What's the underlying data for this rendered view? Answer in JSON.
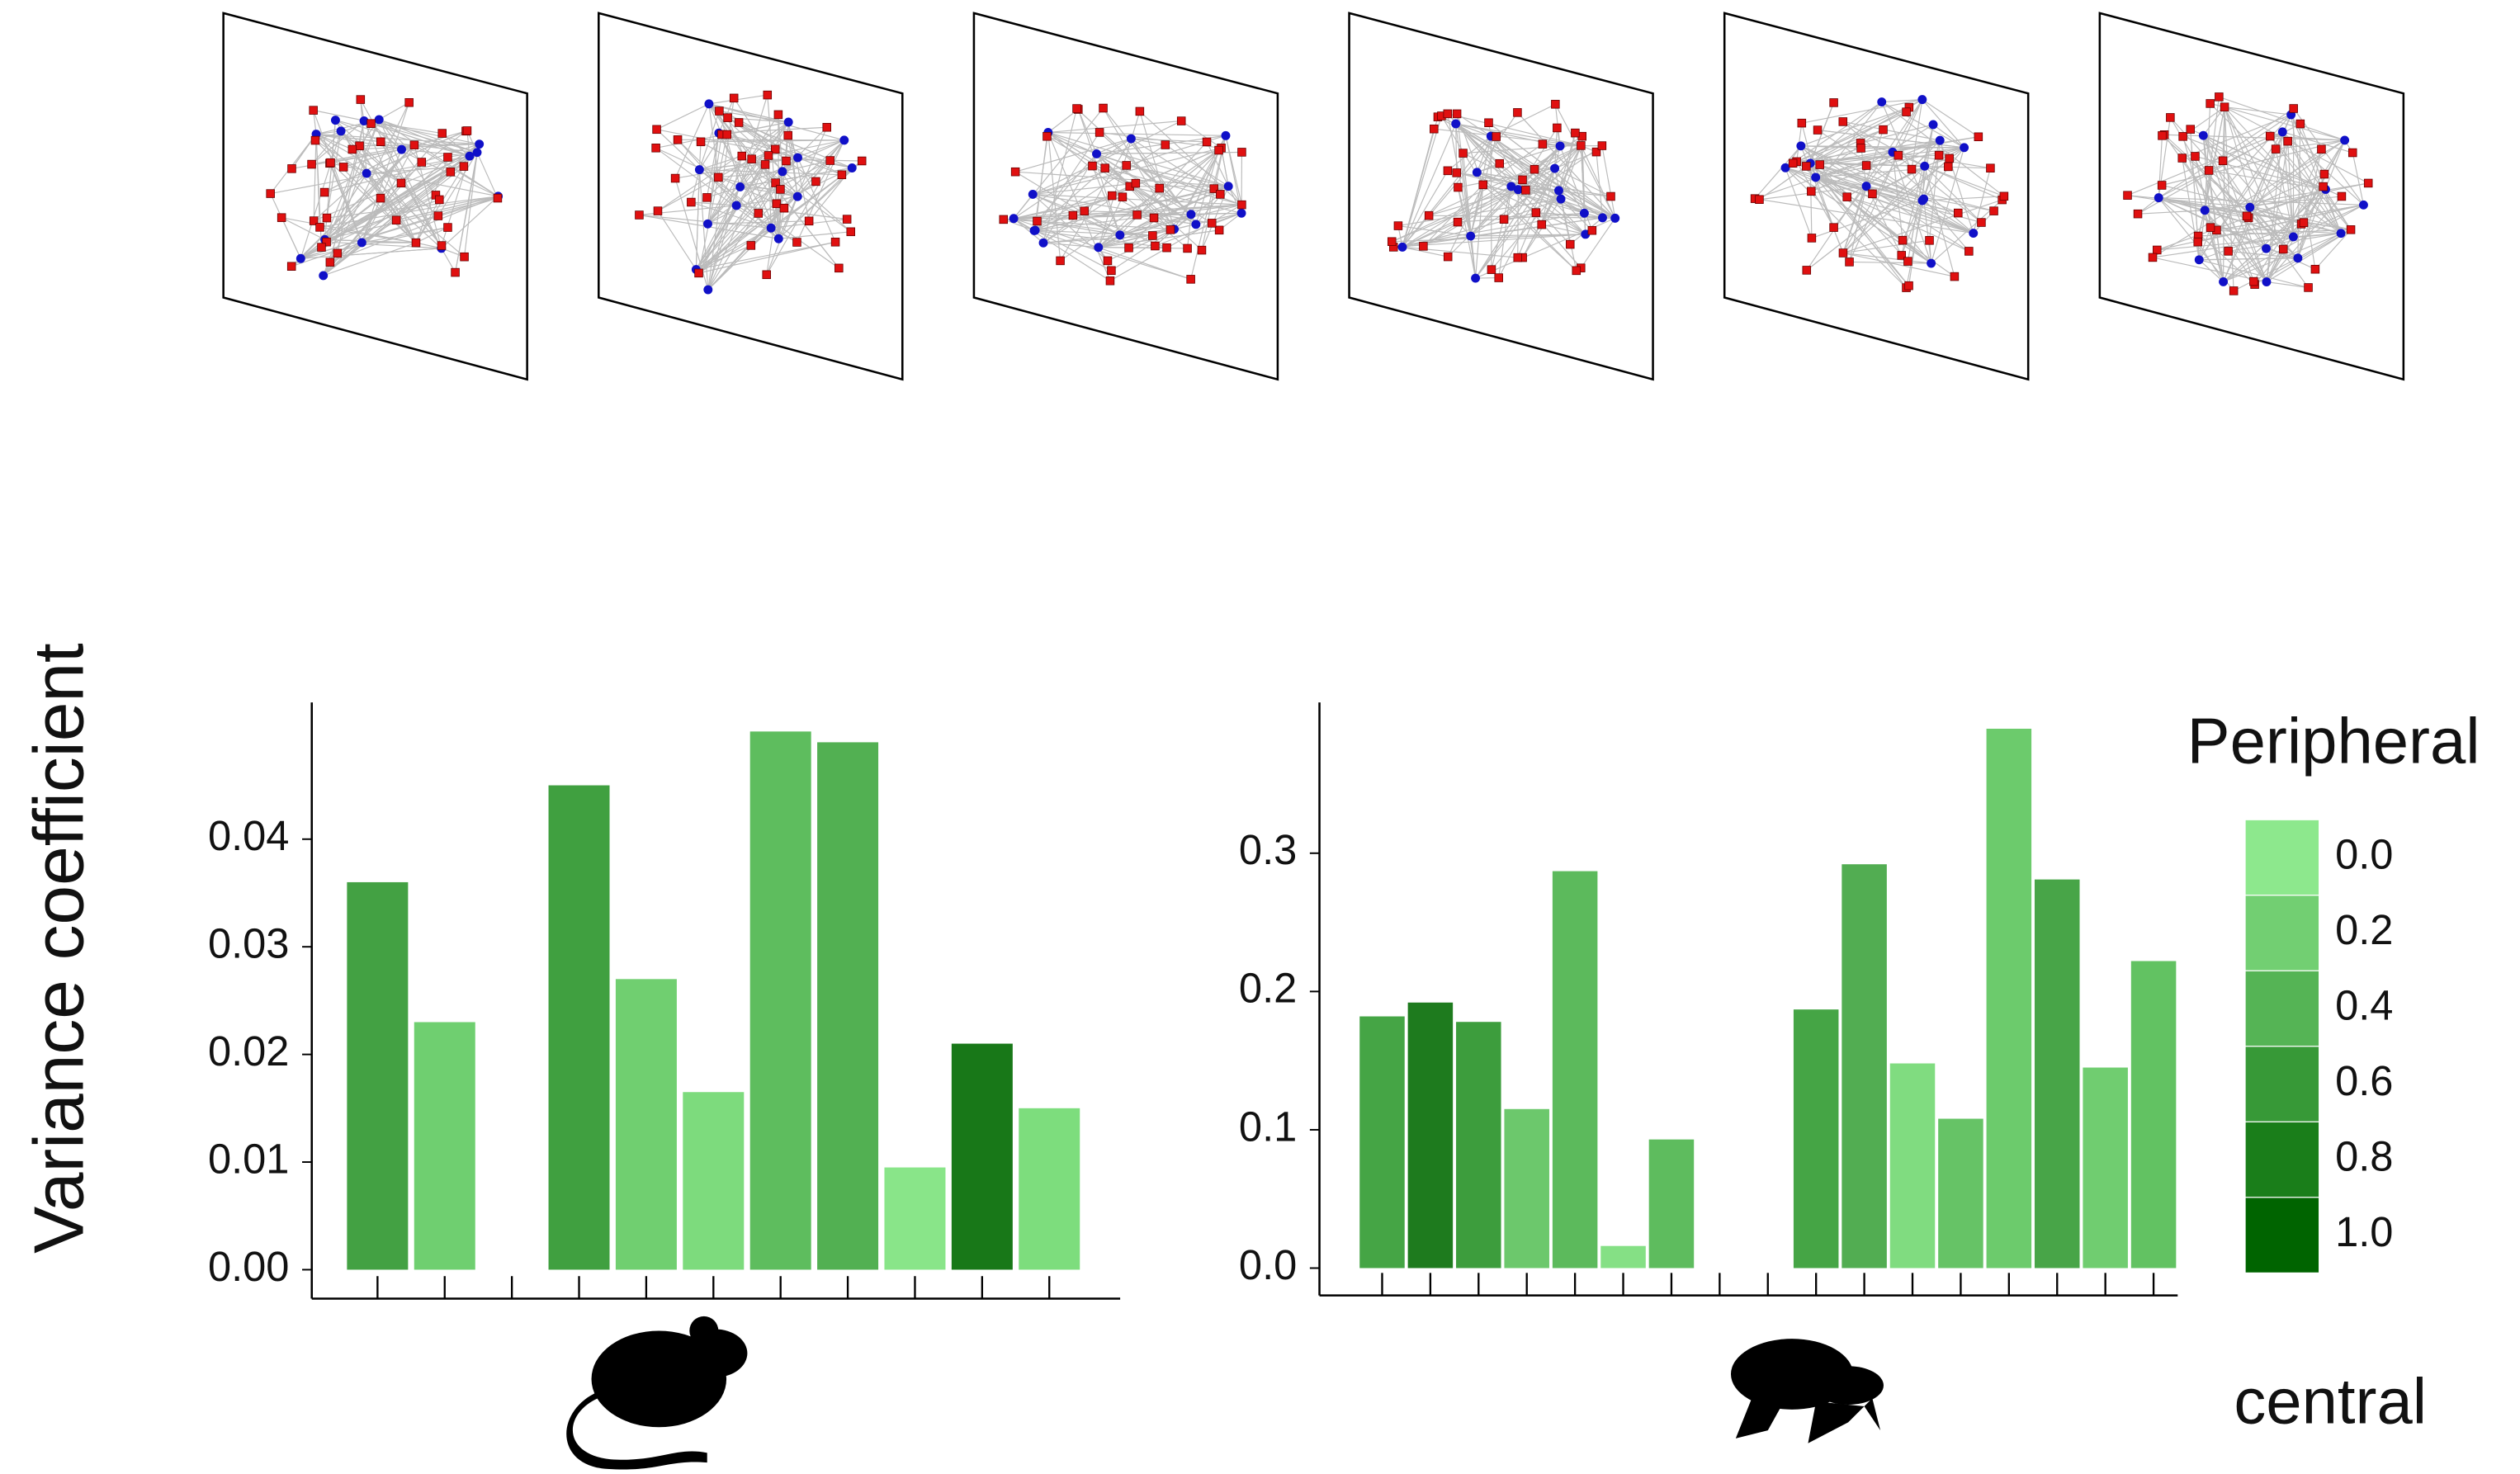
{
  "chart_data": [
    {
      "type": "bar",
      "y_label": "Variance coefficient",
      "categories": [
        null,
        null,
        null,
        null,
        null,
        null,
        null,
        null,
        null,
        null,
        null
      ],
      "values": [
        0.036,
        0.023,
        null,
        0.045,
        0.027,
        0.0165,
        0.05,
        0.049,
        0.0095,
        0.021,
        0.015
      ],
      "colors": [
        "#43a143",
        "#6fcf70",
        null,
        "#40a040",
        "#70cf70",
        "#7ddb7d",
        "#5ebd5e",
        "#52b052",
        "#89e589",
        "#187818",
        "#7ddd7d"
      ],
      "ylim": [
        0,
        0.0527
      ],
      "yticks": [
        {
          "value": 0,
          "label": "0.00"
        },
        {
          "value": 0.01,
          "label": "0.01"
        },
        {
          "value": 0.02,
          "label": "0.02"
        },
        {
          "value": 0.03,
          "label": "0.03"
        },
        {
          "value": 0.04,
          "label": "0.04"
        }
      ]
    },
    {
      "type": "bar",
      "categories": [
        null,
        null,
        null,
        null,
        null,
        null,
        null,
        null,
        null,
        null,
        null,
        null,
        null,
        null,
        null,
        null,
        null
      ],
      "values": [
        0.182,
        0.192,
        0.178,
        0.115,
        0.287,
        0.016,
        0.093,
        null,
        null,
        0.187,
        0.292,
        0.148,
        0.108,
        0.39,
        0.281,
        0.145,
        0.222
      ],
      "colors": [
        "#45a545",
        "#1e7b1e",
        "#3d9d3d",
        "#6cc86c",
        "#5cba5c",
        "#85e085",
        "#5ebc5e",
        null,
        null,
        "#45a545",
        "#52ad52",
        "#80dc80",
        "#66c366",
        "#6ccb6c",
        "#48a548",
        "#70cd70",
        "#62c262"
      ],
      "ylim": [
        0,
        0.409
      ],
      "yticks": [
        {
          "value": 0,
          "label": "0.0"
        },
        0.1,
        0.2,
        0.3
      ],
      "colorbar": {
        "title": "Peripheral",
        "bottom_label": "central",
        "ticks": [
          {
            "value": 0,
            "label": "0.0"
          },
          0.2,
          0.4,
          0.6,
          0.8,
          {
            "value": 1,
            "label": "1.0"
          }
        ],
        "colors": [
          "#8de88d",
          "#72cf72",
          "#55b455",
          "#379937",
          "#1a7e1a",
          "#006400"
        ]
      }
    }
  ]
}
